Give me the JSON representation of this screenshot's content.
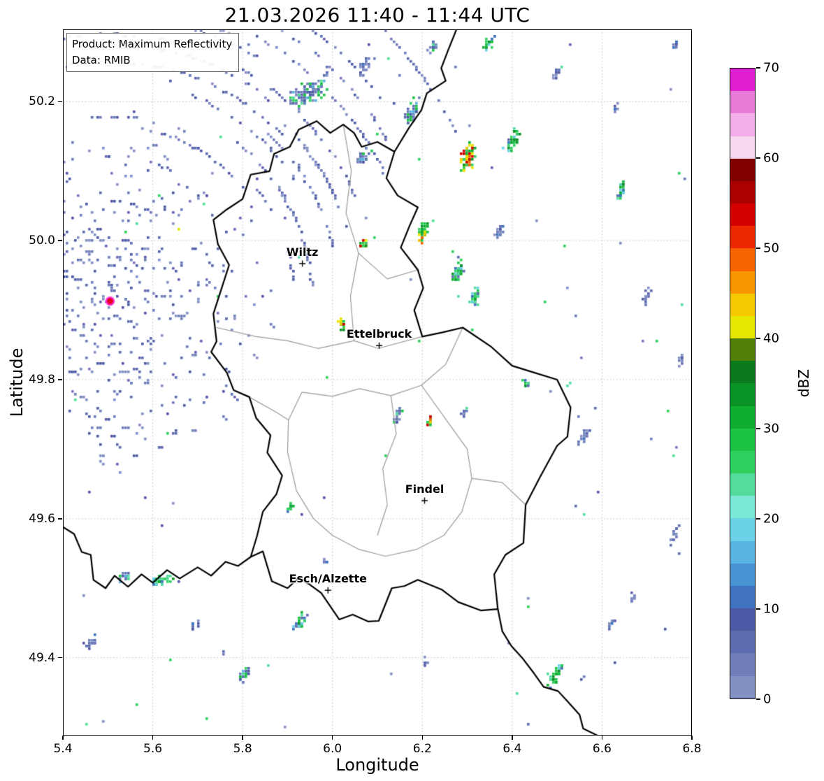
{
  "chart_data": {
    "type": "heatmap",
    "title": "21.03.2026 11:40 - 11:44 UTC",
    "product": "Product: Maximum Reflectivity",
    "source": "Data: RMIB",
    "xlabel": "Longitude",
    "ylabel": "Latitude",
    "xlim": [
      5.4,
      6.8
    ],
    "ylim": [
      49.288,
      50.304
    ],
    "xticks": [
      "5.4",
      "5.6",
      "5.8",
      "6.0",
      "6.2",
      "6.4",
      "6.6",
      "6.8"
    ],
    "yticks": [
      "49.4",
      "49.6",
      "49.8",
      "50.0",
      "50.2"
    ],
    "grid": "dotted",
    "colorbar": {
      "label": "dBZ",
      "vmin": 0,
      "vmax": 70,
      "ticks": [
        "0",
        "10",
        "20",
        "30",
        "40",
        "50",
        "60",
        "70"
      ],
      "band_dbz": 2.5,
      "colors_low_to_high": [
        "#8290c4",
        "#707fba",
        "#5e6cb0",
        "#4d5ba6",
        "#3f72c0",
        "#4a93d2",
        "#58b4e0",
        "#6cd2e8",
        "#7ce8d8",
        "#54dc9c",
        "#30d060",
        "#1cc244",
        "#0fae30",
        "#0a9426",
        "#0b7a1c",
        "#51800a",
        "#e6e600",
        "#f5c800",
        "#f79600",
        "#f56400",
        "#ed2800",
        "#d40000",
        "#aa0000",
        "#800000",
        "#f8d8f0",
        "#f4aee8",
        "#ea7ad8",
        "#e020d0"
      ]
    },
    "cities": [
      {
        "name": "Wiltz",
        "lon": 5.933,
        "lat": 49.967
      },
      {
        "name": "Ettelbruck",
        "lon": 6.104,
        "lat": 49.849
      },
      {
        "name": "Findel",
        "lon": 6.205,
        "lat": 49.626
      },
      {
        "name": "Esch/Alzette",
        "lon": 5.99,
        "lat": 49.497
      }
    ],
    "radar_site": {
      "lon": 5.505,
      "lat": 49.913,
      "marker_fill": "#e60026",
      "marker_edge": "#ff2bd6"
    },
    "borders": {
      "country": [
        [
          6.138,
          50.128
        ],
        [
          6.1,
          50.142
        ],
        [
          6.065,
          50.135
        ],
        [
          6.048,
          50.155
        ],
        [
          6.024,
          50.167
        ],
        [
          5.995,
          50.155
        ],
        [
          5.965,
          50.172
        ],
        [
          5.925,
          50.16
        ],
        [
          5.905,
          50.135
        ],
        [
          5.87,
          50.125
        ],
        [
          5.86,
          50.1
        ],
        [
          5.818,
          50.095
        ],
        [
          5.8,
          50.06
        ],
        [
          5.765,
          50.045
        ],
        [
          5.735,
          50.03
        ],
        [
          5.745,
          49.995
        ],
        [
          5.77,
          49.965
        ],
        [
          5.755,
          49.935
        ],
        [
          5.735,
          49.895
        ],
        [
          5.742,
          49.855
        ],
        [
          5.73,
          49.84
        ],
        [
          5.765,
          49.81
        ],
        [
          5.78,
          49.785
        ],
        [
          5.815,
          49.775
        ],
        [
          5.83,
          49.745
        ],
        [
          5.862,
          49.72
        ],
        [
          5.855,
          49.695
        ],
        [
          5.888,
          49.662
        ],
        [
          5.875,
          49.635
        ],
        [
          5.845,
          49.61
        ],
        [
          5.832,
          49.575
        ],
        [
          5.818,
          49.545
        ],
        [
          5.845,
          49.553
        ],
        [
          5.865,
          49.51
        ],
        [
          5.9,
          49.5
        ],
        [
          5.925,
          49.515
        ],
        [
          5.95,
          49.505
        ],
        [
          5.975,
          49.493
        ],
        [
          6.015,
          49.455
        ],
        [
          6.045,
          49.462
        ],
        [
          6.08,
          49.452
        ],
        [
          6.103,
          49.453
        ],
        [
          6.132,
          49.5
        ],
        [
          6.16,
          49.503
        ],
        [
          6.19,
          49.512
        ],
        [
          6.243,
          49.498
        ],
        [
          6.28,
          49.48
        ],
        [
          6.33,
          49.468
        ],
        [
          6.368,
          49.47
        ],
        [
          6.36,
          49.52
        ],
        [
          6.385,
          49.548
        ],
        [
          6.425,
          49.565
        ],
        [
          6.43,
          49.62
        ],
        [
          6.462,
          49.66
        ],
        [
          6.5,
          49.705
        ],
        [
          6.523,
          49.718
        ],
        [
          6.53,
          49.76
        ],
        [
          6.5,
          49.8
        ],
        [
          6.44,
          49.812
        ],
        [
          6.4,
          49.82
        ],
        [
          6.352,
          49.848
        ],
        [
          6.29,
          49.875
        ],
        [
          6.245,
          49.868
        ],
        [
          6.2,
          49.862
        ],
        [
          6.182,
          49.9
        ],
        [
          6.202,
          49.932
        ],
        [
          6.19,
          49.958
        ],
        [
          6.152,
          49.99
        ],
        [
          6.172,
          50.022
        ],
        [
          6.19,
          50.048
        ],
        [
          6.145,
          50.065
        ],
        [
          6.12,
          50.09
        ],
        [
          6.138,
          50.128
        ]
      ],
      "neighbors": [
        [
          [
            6.276,
            50.304
          ],
          [
            6.258,
            50.275
          ],
          [
            6.242,
            50.248
          ],
          [
            6.252,
            50.23
          ],
          [
            6.21,
            50.212
          ],
          [
            6.198,
            50.188
          ],
          [
            6.17,
            50.162
          ],
          [
            6.138,
            50.128
          ]
        ],
        [
          [
            5.4,
            49.588
          ],
          [
            5.425,
            49.578
          ],
          [
            5.442,
            49.552
          ],
          [
            5.462,
            49.548
          ],
          [
            5.468,
            49.512
          ],
          [
            5.495,
            49.5
          ],
          [
            5.515,
            49.518
          ],
          [
            5.545,
            49.502
          ],
          [
            5.575,
            49.52
          ],
          [
            5.6,
            49.508
          ],
          [
            5.632,
            49.526
          ],
          [
            5.66,
            49.514
          ],
          [
            5.7,
            49.53
          ],
          [
            5.73,
            49.518
          ],
          [
            5.762,
            49.538
          ],
          [
            5.79,
            49.532
          ],
          [
            5.818,
            49.545
          ]
        ],
        [
          [
            6.368,
            49.47
          ],
          [
            6.378,
            49.438
          ],
          [
            6.398,
            49.417
          ],
          [
            6.422,
            49.4
          ],
          [
            6.448,
            49.378
          ],
          [
            6.47,
            49.358
          ],
          [
            6.502,
            49.352
          ],
          [
            6.522,
            49.338
          ],
          [
            6.55,
            49.318
          ],
          [
            6.558,
            49.298
          ],
          [
            6.59,
            49.288
          ]
        ]
      ],
      "districts": [
        [
          [
            5.742,
            49.875
          ],
          [
            5.83,
            49.862
          ],
          [
            5.9,
            49.856
          ],
          [
            5.968,
            49.845
          ],
          [
            6.048,
            49.856
          ],
          [
            6.102,
            49.845
          ],
          [
            6.2,
            49.862
          ]
        ],
        [
          [
            6.024,
            50.167
          ],
          [
            6.042,
            50.1
          ],
          [
            6.03,
            50.04
          ],
          [
            6.058,
            49.982
          ],
          [
            6.04,
            49.92
          ],
          [
            6.048,
            49.856
          ]
        ],
        [
          [
            6.29,
            49.875
          ],
          [
            6.252,
            49.822
          ],
          [
            6.198,
            49.792
          ],
          [
            6.13,
            49.777
          ],
          [
            6.06,
            49.787
          ],
          [
            6.0,
            49.776
          ],
          [
            5.932,
            49.782
          ],
          [
            5.902,
            49.742
          ],
          [
            5.9,
            49.696
          ]
        ],
        [
          [
            5.9,
            49.696
          ],
          [
            5.92,
            49.64
          ],
          [
            5.958,
            49.6
          ],
          [
            6.0,
            49.576
          ],
          [
            6.058,
            49.556
          ],
          [
            6.118,
            49.546
          ],
          [
            6.188,
            49.556
          ],
          [
            6.248,
            49.576
          ],
          [
            6.288,
            49.61
          ],
          [
            6.31,
            49.658
          ],
          [
            6.3,
            49.7
          ],
          [
            6.26,
            49.736
          ],
          [
            6.198,
            49.792
          ]
        ],
        [
          [
            6.31,
            49.658
          ],
          [
            6.378,
            49.652
          ],
          [
            6.43,
            49.62
          ]
        ],
        [
          [
            6.13,
            49.777
          ],
          [
            6.142,
            49.722
          ],
          [
            6.112,
            49.672
          ],
          [
            6.122,
            49.62
          ],
          [
            6.1,
            49.576
          ]
        ],
        [
          [
            5.815,
            49.775
          ],
          [
            5.878,
            49.752
          ],
          [
            5.902,
            49.742
          ]
        ],
        [
          [
            6.19,
            49.958
          ],
          [
            6.122,
            49.945
          ],
          [
            6.058,
            49.982
          ]
        ]
      ]
    },
    "echoes": {
      "seed": 12,
      "clutter": {
        "center": [
          5.505,
          49.913
        ],
        "r0": 12,
        "r1": 238,
        "r2": 560,
        "dr": 13
      },
      "scatter": {
        "count": 110
      },
      "clusters": [
        {
          "lon": 5.952,
          "lat": 50.215,
          "len": 42,
          "wid": 16,
          "ang": 60,
          "n": 120,
          "pal": "bluegreen"
        },
        {
          "lon": 6.07,
          "lat": 50.25,
          "len": 16,
          "wid": 7,
          "ang": 30,
          "n": 22,
          "pal": "blue"
        },
        {
          "lon": 6.178,
          "lat": 50.185,
          "len": 22,
          "wid": 9,
          "ang": 20,
          "n": 40,
          "pal": "bluegreen"
        },
        {
          "lon": 6.224,
          "lat": 50.278,
          "len": 13,
          "wid": 6,
          "ang": 25,
          "n": 18,
          "pal": "bluegreen"
        },
        {
          "lon": 6.349,
          "lat": 50.285,
          "len": 14,
          "wid": 7,
          "ang": 20,
          "n": 20,
          "pal": "green"
        },
        {
          "lon": 6.302,
          "lat": 50.12,
          "len": 24,
          "wid": 11,
          "ang": 20,
          "n": 75,
          "pal": "convective"
        },
        {
          "lon": 6.403,
          "lat": 50.145,
          "len": 20,
          "wid": 8,
          "ang": 25,
          "n": 35,
          "pal": "green"
        },
        {
          "lon": 6.069,
          "lat": 50.12,
          "len": 16,
          "wid": 8,
          "ang": 20,
          "n": 24,
          "pal": "bluegreen"
        },
        {
          "lon": 6.201,
          "lat": 50.014,
          "len": 18,
          "wid": 9,
          "ang": 15,
          "n": 45,
          "pal": "convective"
        },
        {
          "lon": 6.279,
          "lat": 49.954,
          "len": 22,
          "wid": 8,
          "ang": 20,
          "n": 48,
          "pal": "green"
        },
        {
          "lon": 6.318,
          "lat": 49.919,
          "len": 15,
          "wid": 7,
          "ang": 20,
          "n": 30,
          "pal": "green"
        },
        {
          "lon": 6.069,
          "lat": 49.994,
          "len": 11,
          "wid": 5,
          "ang": 20,
          "n": 16,
          "pal": "convective"
        },
        {
          "lon": 6.022,
          "lat": 49.879,
          "len": 11,
          "wid": 5,
          "ang": 10,
          "n": 18,
          "pal": "convective"
        },
        {
          "lon": 6.147,
          "lat": 49.748,
          "len": 13,
          "wid": 6,
          "ang": 20,
          "n": 20,
          "pal": "bluegreen"
        },
        {
          "lon": 6.217,
          "lat": 49.743,
          "len": 9,
          "wid": 4,
          "ang": 0,
          "n": 12,
          "pal": "convective"
        },
        {
          "lon": 6.294,
          "lat": 49.753,
          "len": 9,
          "wid": 4,
          "ang": 20,
          "n": 10,
          "pal": "bluegreen"
        },
        {
          "lon": 6.434,
          "lat": 49.793,
          "len": 8,
          "wid": 4,
          "ang": 0,
          "n": 9,
          "pal": "green"
        },
        {
          "lon": 6.559,
          "lat": 49.717,
          "len": 18,
          "wid": 5,
          "ang": 25,
          "n": 20,
          "pal": "blue"
        },
        {
          "lon": 6.644,
          "lat": 50.07,
          "len": 22,
          "wid": 6,
          "ang": 20,
          "n": 30,
          "pal": "green"
        },
        {
          "lon": 6.699,
          "lat": 49.919,
          "len": 15,
          "wid": 5,
          "ang": 25,
          "n": 16,
          "pal": "blue"
        },
        {
          "lon": 6.63,
          "lat": 50.19,
          "len": 10,
          "wid": 4,
          "ang": 25,
          "n": 9,
          "pal": "blue"
        },
        {
          "lon": 6.777,
          "lat": 49.828,
          "len": 11,
          "wid": 4,
          "ang": 20,
          "n": 12,
          "pal": "blue"
        },
        {
          "lon": 6.761,
          "lat": 49.577,
          "len": 20,
          "wid": 5,
          "ang": 25,
          "n": 22,
          "pal": "blue"
        },
        {
          "lon": 6.668,
          "lat": 49.486,
          "len": 11,
          "wid": 4,
          "ang": 25,
          "n": 10,
          "pal": "blue"
        },
        {
          "lon": 6.497,
          "lat": 49.375,
          "len": 24,
          "wid": 6,
          "ang": 30,
          "n": 35,
          "pal": "green"
        },
        {
          "lon": 6.621,
          "lat": 49.45,
          "len": 14,
          "wid": 4,
          "ang": 25,
          "n": 12,
          "pal": "blue"
        },
        {
          "lon": 6.209,
          "lat": 49.395,
          "len": 8,
          "wid": 4,
          "ang": 0,
          "n": 8,
          "pal": "blue"
        },
        {
          "lon": 5.983,
          "lat": 49.541,
          "len": 8,
          "wid": 4,
          "ang": 0,
          "n": 7,
          "pal": "blue"
        },
        {
          "lon": 5.906,
          "lat": 49.617,
          "len": 9,
          "wid": 4,
          "ang": 10,
          "n": 12,
          "pal": "green"
        },
        {
          "lon": 5.929,
          "lat": 49.451,
          "len": 16,
          "wid": 8,
          "ang": 30,
          "n": 30,
          "pal": "green"
        },
        {
          "lon": 5.804,
          "lat": 49.375,
          "len": 18,
          "wid": 7,
          "ang": 30,
          "n": 26,
          "pal": "bluegreen"
        },
        {
          "lon": 5.618,
          "lat": 49.511,
          "len": 20,
          "wid": 9,
          "ang": 70,
          "n": 40,
          "pal": "green"
        },
        {
          "lon": 5.54,
          "lat": 49.516,
          "len": 13,
          "wid": 7,
          "ang": 60,
          "n": 22,
          "pal": "bluegreen"
        },
        {
          "lon": 5.462,
          "lat": 49.421,
          "len": 14,
          "wid": 6,
          "ang": 50,
          "n": 16,
          "pal": "blue"
        },
        {
          "lon": 5.696,
          "lat": 49.45,
          "len": 11,
          "wid": 5,
          "ang": 40,
          "n": 10,
          "pal": "blue"
        },
        {
          "lon": 6.372,
          "lat": 50.015,
          "len": 13,
          "wid": 5,
          "ang": 20,
          "n": 16,
          "pal": "blue"
        },
        {
          "lon": 6.497,
          "lat": 50.24,
          "len": 11,
          "wid": 5,
          "ang": 25,
          "n": 13,
          "pal": "blue"
        },
        {
          "lon": 6.761,
          "lat": 50.28,
          "len": 9,
          "wid": 4,
          "ang": 25,
          "n": 9,
          "pal": "blue"
        }
      ]
    }
  }
}
